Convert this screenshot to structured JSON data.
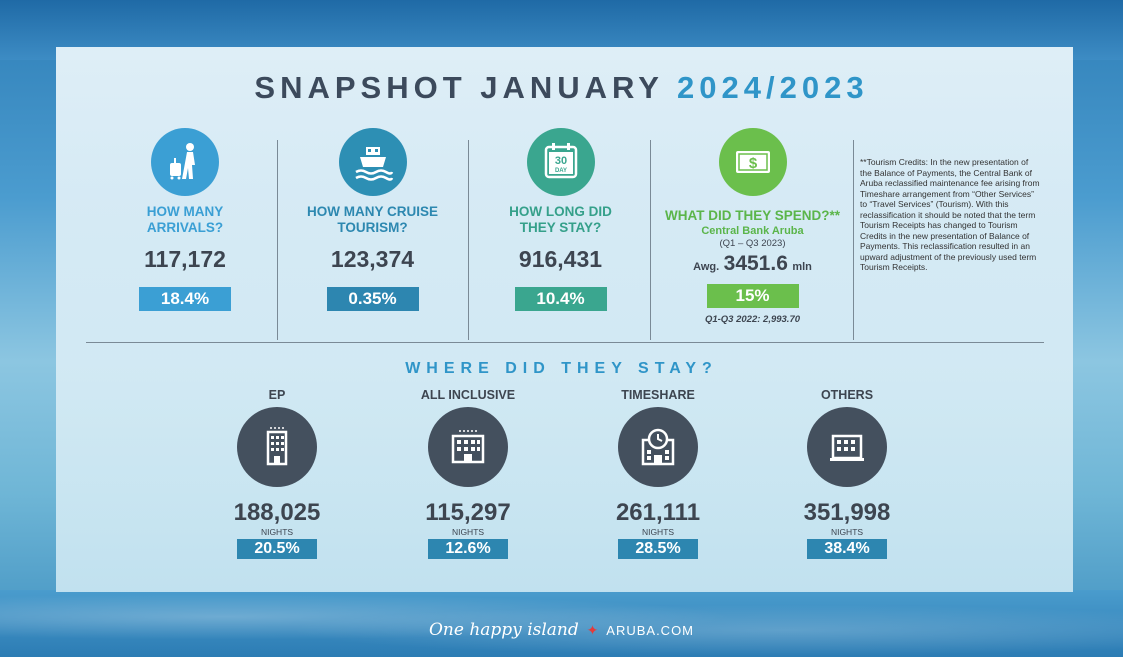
{
  "title": {
    "main": "SNAPSHOT JANUARY",
    "years": "2024/2023"
  },
  "stats": [
    {
      "id": "arrivals",
      "question": "HOW MANY ARRIVALS?",
      "value": "117,172",
      "change": "18.4%",
      "icon": "traveler-icon"
    },
    {
      "id": "cruise",
      "question": "HOW MANY CRUISE TOURISM?",
      "value": "123,374",
      "change": "0.35%",
      "icon": "ship-icon"
    },
    {
      "id": "stay",
      "question": "HOW LONG DID THEY STAY?",
      "value": "916,431",
      "change": "10.4%",
      "icon": "calendar-icon",
      "calendar_text": {
        "num": "30",
        "word": "DAY"
      }
    },
    {
      "id": "spend",
      "question": "WHAT DID THEY SPEND?**",
      "source": "Central Bank Aruba",
      "period": "(Q1 – Q3 2023)",
      "avg_label": "Awg.",
      "value": "3451.6",
      "unit": "mln",
      "change": "15%",
      "previous": "Q1-Q3 2022: 2,993.70",
      "icon": "money-icon",
      "money_symbol": "$"
    }
  ],
  "note": "**Tourism Credits: In the new presentation of the Balance of Payments, the Central Bank of Aruba reclassified maintenance fee arising from Timeshare arrangement from “Other Services” to “Travel Services” (Tourism). With this reclassification it should be noted that the term Tourism Receipts has changed to Tourism Credits in the new presentation of Balance of Payments. This reclassification resulted in an upward adjustment of the previously used term Tourism Receipts.",
  "stay_section": {
    "title": "WHERE DID THEY STAY?",
    "nights_label": "NIGHTS",
    "items": [
      {
        "label": "EP",
        "value": "188,025",
        "share": "20.5%",
        "icon": "hotel-icon"
      },
      {
        "label": "ALL INCLUSIVE",
        "value": "115,297",
        "share": "12.6%",
        "icon": "resort-icon"
      },
      {
        "label": "TIMESHARE",
        "value": "261,111",
        "share": "28.5%",
        "icon": "timeshare-icon"
      },
      {
        "label": "OTHERS",
        "value": "351,998",
        "share": "38.4%",
        "icon": "building-icon"
      }
    ]
  },
  "footer": {
    "tagline": "One happy island",
    "star": "✦",
    "brand": "ARUBA.COM"
  },
  "colors": {
    "blue": "#3b9fd4",
    "teal": "#2d86b0",
    "green": "#3aa68f",
    "light_green": "#6bbf4c",
    "dark": "#44505e"
  }
}
